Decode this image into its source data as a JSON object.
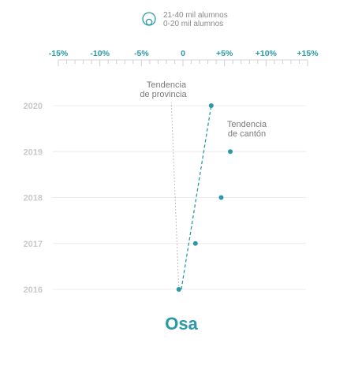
{
  "legend": {
    "items": [
      "21-40 mil alumnos",
      "0-20 mil alumnos"
    ]
  },
  "annotations": {
    "province": [
      "Tendencia",
      "de provincia"
    ],
    "canton": [
      "Tendencia",
      "de cantón"
    ]
  },
  "title": "Osa",
  "colors": {
    "accent": "#2a9aa6",
    "year_labels": "#c9c9c9",
    "gridline": "#ececec",
    "province_trend": "#c0c0c0"
  },
  "chart_data": {
    "type": "scatter",
    "title": "Osa",
    "xlabel": "",
    "ylabel": "",
    "x_ticks": [
      "-15%",
      "-10%",
      "-5%",
      "0",
      "+5%",
      "+10%",
      "+15%"
    ],
    "x_tick_values": [
      -15,
      -10,
      -5,
      0,
      5,
      10,
      15
    ],
    "xlim": [
      -15,
      15
    ],
    "y_categories": [
      "2020",
      "2019",
      "2018",
      "2017",
      "2016"
    ],
    "series": [
      {
        "points": [
          {
            "year": "2016",
            "x": -0.5
          },
          {
            "year": "2017",
            "x": 1.5
          },
          {
            "year": "2018",
            "x": 4.6
          },
          {
            "year": "2019",
            "x": 5.7
          },
          {
            "year": "2020",
            "x": 3.4
          }
        ]
      }
    ],
    "trend_canton": {
      "from": {
        "year": "2016",
        "x": -0.2
      },
      "to": {
        "year": "2020",
        "x": 3.4
      }
    },
    "trend_province": {
      "from": {
        "year": "2016",
        "x": -0.5
      },
      "to": {
        "year": "2020",
        "x": -1.4
      }
    }
  }
}
